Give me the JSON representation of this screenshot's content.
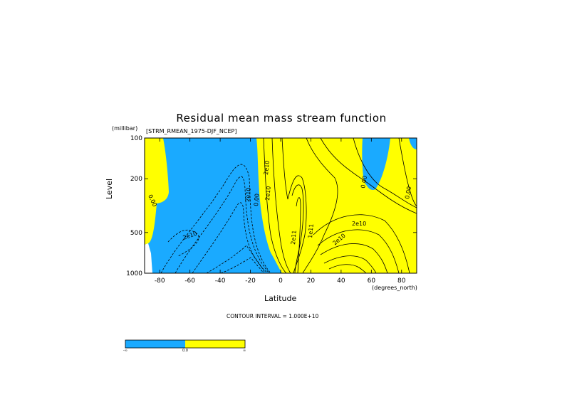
{
  "chart_data": {
    "type": "contour",
    "title": "Residual mean mass stream function",
    "subtitle": "[STRM_RMEAN_1975-DJF_NCEP]",
    "ylabel": "Level",
    "yunits": "(millibar)",
    "xlabel": "Latitude",
    "xunits": "(degrees_north)",
    "y_ticks": [
      100,
      200,
      500,
      1000
    ],
    "x_ticks": [
      -80,
      -60,
      -40,
      -20,
      0,
      20,
      40,
      60,
      80
    ],
    "xlim": [
      -90,
      90
    ],
    "ylim": [
      1000,
      100
    ],
    "y_scale": "log",
    "contour_interval_text": "CONTOUR INTERVAL = 1.000E+10",
    "contour_labels": [
      "0.00",
      "2e10",
      "2e10",
      "0.00",
      "2e10",
      "2e10",
      "2e11",
      "1e11",
      "2e10",
      "2e10",
      "0.00",
      "0.00"
    ],
    "fill_colors": {
      "negative": "#1aaaff",
      "positive": "#ffff00",
      "missing": "#ffffff"
    },
    "colorbar": {
      "colors": [
        "#1aaaff",
        "#ffff00"
      ],
      "labels": [
        "-∞",
        "0.0",
        "∞"
      ]
    }
  }
}
